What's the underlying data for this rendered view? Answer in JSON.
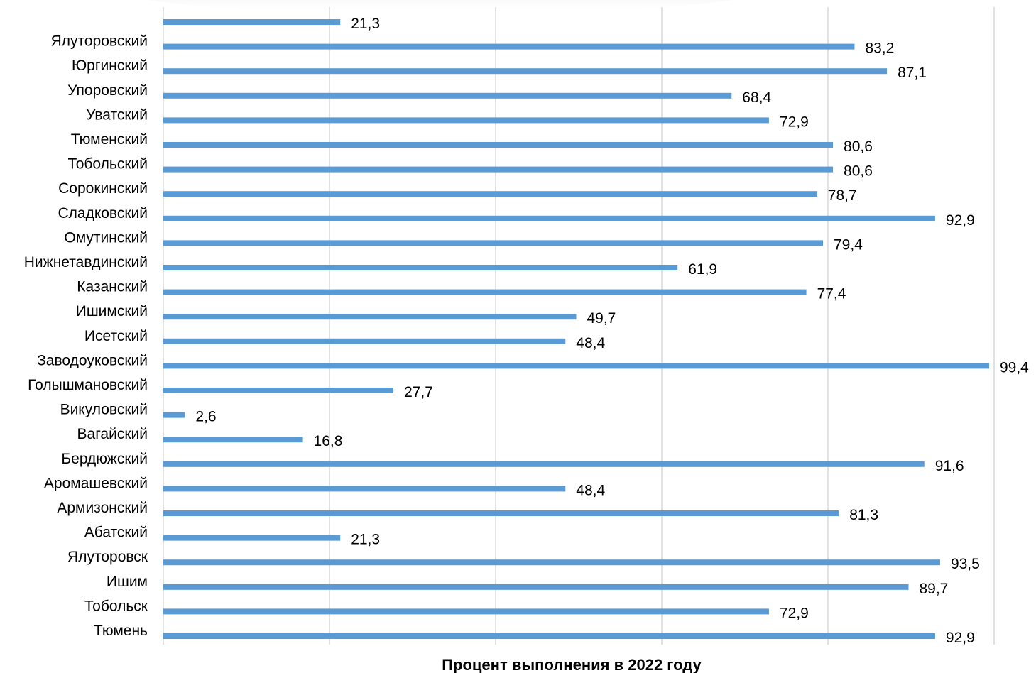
{
  "chart_data": {
    "type": "bar",
    "orientation": "horizontal",
    "categories": [
      "",
      "Ялуторовский",
      "Юргинский",
      "Упоровский",
      "Уватский",
      "Тюменский",
      "Тобольский",
      "Сорокинский",
      "Сладковский",
      "Омутинский",
      "Нижнетавдинский",
      "Казанский",
      "Ишимский",
      "Исетский",
      "Заводоуковский",
      "Голышмановский",
      "Викуловский",
      "Вагайский",
      "Бердюжский",
      "Аромашевский",
      "Армизонский",
      "Абатский",
      "Ялуторовск",
      "Ишим",
      "Тобольск",
      "Тюмень"
    ],
    "values": [
      21.3,
      83.2,
      87.1,
      68.4,
      72.9,
      80.6,
      80.6,
      78.7,
      92.9,
      79.4,
      61.9,
      77.4,
      49.7,
      48.4,
      99.4,
      27.7,
      2.6,
      16.8,
      91.6,
      48.4,
      81.3,
      21.3,
      93.5,
      89.7,
      72.9,
      92.9
    ],
    "value_labels": [
      "21,3",
      "83,2",
      "87,1",
      "68,4",
      "72,9",
      "80,6",
      "80,6",
      "78,7",
      "92,9",
      "79,4",
      "61,9",
      "77,4",
      "49,7",
      "48,4",
      "99,4",
      "27,7",
      "2,6",
      "16,8",
      "91,6",
      "48,4",
      "81,3",
      "21,3",
      "93,5",
      "89,7",
      "72,9",
      "92,9"
    ],
    "xlabel": "Процент выполнения в 2022 году",
    "ylabel": "",
    "xlim": [
      0,
      100
    ],
    "gridlines": [
      0,
      20,
      40,
      60,
      80,
      100
    ],
    "grid": true,
    "legend": "none",
    "bar_color": "#5b9bd5"
  }
}
